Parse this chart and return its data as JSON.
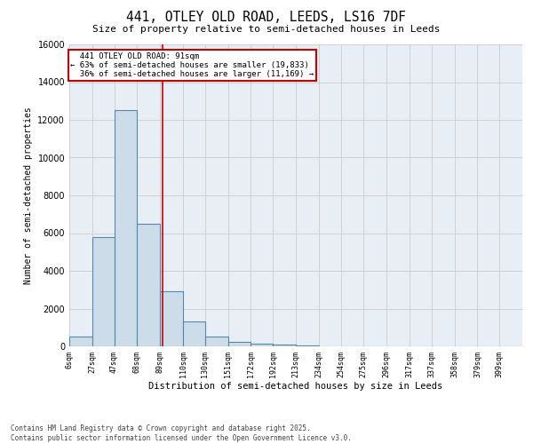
{
  "title": "441, OTLEY OLD ROAD, LEEDS, LS16 7DF",
  "subtitle": "Size of property relative to semi-detached houses in Leeds",
  "xlabel": "Distribution of semi-detached houses by size in Leeds",
  "ylabel": "Number of semi-detached properties",
  "property_size": 91,
  "property_label": "441 OTLEY OLD ROAD: 91sqm",
  "pct_smaller": 63,
  "count_smaller": 19833,
  "pct_larger": 36,
  "count_larger": 11169,
  "bar_color": "#ccdce8",
  "bar_edge_color": "#5588aa",
  "vline_color": "#cc0000",
  "annotation_box_color": "#cc0000",
  "grid_color": "#cccccc",
  "bg_color": "#e8eef5",
  "bins": [
    6,
    27,
    47,
    68,
    89,
    110,
    130,
    151,
    172,
    192,
    213,
    234,
    254,
    275,
    296,
    317,
    337,
    358,
    379,
    399,
    420
  ],
  "counts": [
    500,
    5800,
    12500,
    6500,
    2900,
    1300,
    500,
    250,
    150,
    80,
    40,
    15,
    5,
    2,
    1,
    0,
    0,
    0,
    0,
    0
  ],
  "ylim": [
    0,
    16000
  ],
  "yticks": [
    0,
    2000,
    4000,
    6000,
    8000,
    10000,
    12000,
    14000,
    16000
  ],
  "footer_line1": "Contains HM Land Registry data © Crown copyright and database right 2025.",
  "footer_line2": "Contains public sector information licensed under the Open Government Licence v3.0."
}
